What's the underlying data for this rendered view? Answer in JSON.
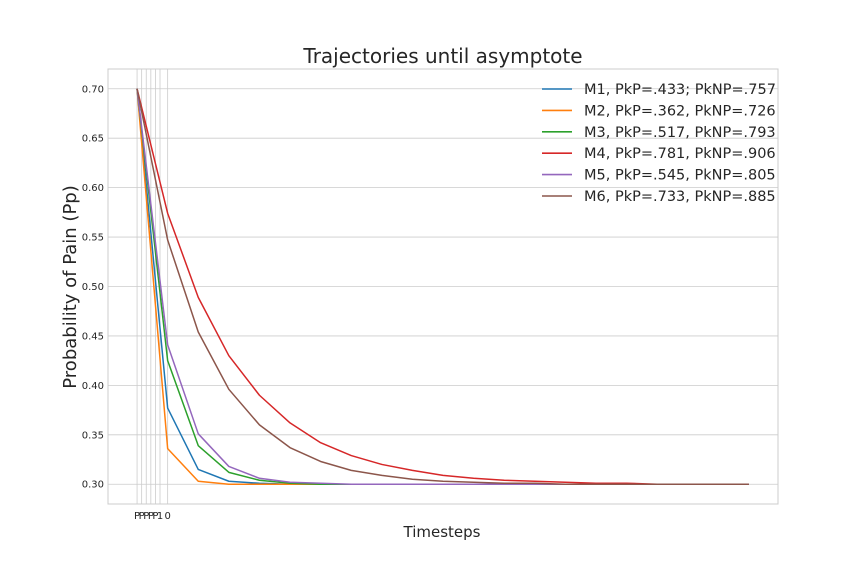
{
  "chart_data": {
    "type": "line",
    "title": "Trajectories until asymptote",
    "xlabel": "Timesteps",
    "ylabel": "Probability of Pain (Pp)",
    "xlim": [
      -0.95,
      20.95
    ],
    "ylim": [
      0.28,
      0.72
    ],
    "yticks": [
      "0.30",
      "0.35",
      "0.40",
      "0.45",
      "0.50",
      "0.55",
      "0.60",
      "0.65",
      "0.70"
    ],
    "xticks": [
      {
        "x": 0.0,
        "label": "P"
      },
      {
        "x": 0.15,
        "label": "P"
      },
      {
        "x": 0.3,
        "label": "P"
      },
      {
        "x": 0.45,
        "label": "P"
      },
      {
        "x": 0.6,
        "label": "P"
      },
      {
        "x": 0.75,
        "label": "1"
      },
      {
        "x": 1.0,
        "label": "0"
      }
    ],
    "grid": true,
    "legend_position": "top-right",
    "x": [
      0,
      1,
      2,
      3,
      4,
      5,
      6,
      7,
      8,
      9,
      10,
      11,
      12,
      13,
      14,
      15,
      16,
      17,
      18,
      19,
      20
    ],
    "series": [
      {
        "name": "M1, PkP=.433; PkNP=.757",
        "color": "#1f77b4",
        "values": [
          0.7,
          0.377,
          0.315,
          0.303,
          0.301,
          0.3,
          0.3,
          0.3,
          0.3,
          0.3,
          0.3,
          0.3,
          0.3,
          0.3,
          0.3,
          0.3,
          0.3,
          0.3,
          0.3,
          0.3,
          0.3
        ]
      },
      {
        "name": "M2, PkP=.362, PkNP=.726",
        "color": "#ff7f0e",
        "values": [
          0.7,
          0.336,
          0.303,
          0.3,
          0.3,
          0.3,
          0.3,
          0.3,
          0.3,
          0.3,
          0.3,
          0.3,
          0.3,
          0.3,
          0.3,
          0.3,
          0.3,
          0.3,
          0.3,
          0.3,
          0.3
        ]
      },
      {
        "name": "M3, PkP=.517, PkNP=.793",
        "color": "#2ca02c",
        "values": [
          0.7,
          0.425,
          0.339,
          0.312,
          0.304,
          0.301,
          0.3,
          0.3,
          0.3,
          0.3,
          0.3,
          0.3,
          0.3,
          0.3,
          0.3,
          0.3,
          0.3,
          0.3,
          0.3,
          0.3,
          0.3
        ]
      },
      {
        "name": "M4, PkP=.781, PkNP=.906",
        "color": "#d62728",
        "values": [
          0.7,
          0.574,
          0.489,
          0.43,
          0.39,
          0.362,
          0.342,
          0.329,
          0.32,
          0.314,
          0.309,
          0.306,
          0.304,
          0.303,
          0.302,
          0.301,
          0.301,
          0.3,
          0.3,
          0.3,
          0.3
        ]
      },
      {
        "name": "M5, PkP=.545, PkNP=.805",
        "color": "#9467bd",
        "values": [
          0.7,
          0.441,
          0.351,
          0.318,
          0.306,
          0.302,
          0.301,
          0.3,
          0.3,
          0.3,
          0.3,
          0.3,
          0.3,
          0.3,
          0.3,
          0.3,
          0.3,
          0.3,
          0.3,
          0.3,
          0.3
        ]
      },
      {
        "name": "M6, PkP=.733, PkNP=.885",
        "color": "#8c564b",
        "values": [
          0.7,
          0.547,
          0.454,
          0.396,
          0.36,
          0.337,
          0.323,
          0.314,
          0.309,
          0.305,
          0.303,
          0.302,
          0.301,
          0.301,
          0.3,
          0.3,
          0.3,
          0.3,
          0.3,
          0.3,
          0.3
        ]
      }
    ]
  }
}
